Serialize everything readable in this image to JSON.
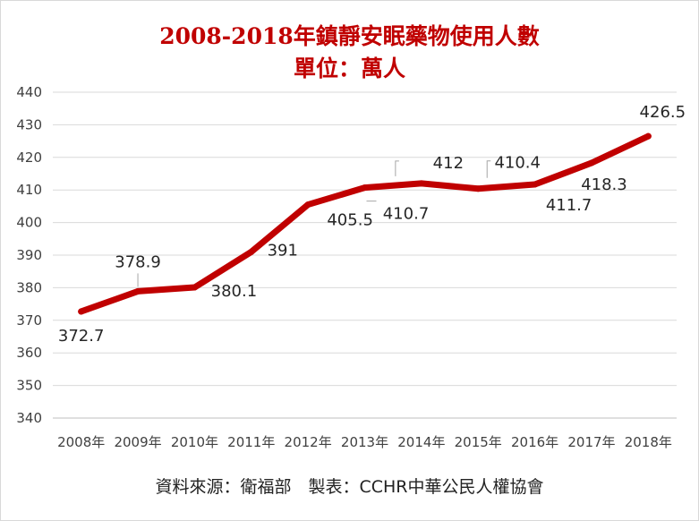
{
  "chart_data": {
    "type": "line",
    "title": "2008-2018年鎮靜安眠藥物使用人數",
    "subtitle": "單位：萬人",
    "categories": [
      "2008年",
      "2009年",
      "2010年",
      "2011年",
      "2012年",
      "2013年",
      "2014年",
      "2015年",
      "2016年",
      "2017年",
      "2018年"
    ],
    "series": [
      {
        "values": [
          372.7,
          378.9,
          380.1,
          391,
          405.5,
          410.7,
          412,
          410.4,
          411.7,
          418.3,
          426.5
        ],
        "labels": [
          "372.7",
          "378.9",
          "380.1",
          "391",
          "405.5",
          "410.7",
          "412",
          "410.4",
          "411.7",
          "418.3",
          "426.5"
        ]
      }
    ],
    "ylim": [
      340,
      440
    ],
    "yticks": [
      340,
      350,
      360,
      370,
      380,
      390,
      400,
      410,
      420,
      430,
      440
    ],
    "grid": true,
    "line_color": "#c00000"
  },
  "footer": {
    "source": "資料來源：衛福部　製表：CCHR中華公民人權協會"
  }
}
